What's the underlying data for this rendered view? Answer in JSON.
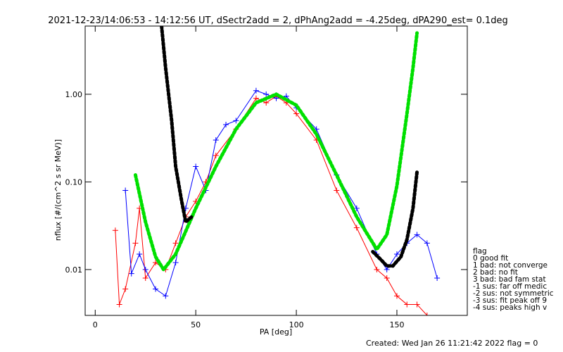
{
  "chart_data": {
    "type": "line",
    "title": "2021-12-23/14:06:53 - 14:12:56 UT, dSectr2add = 2, dPhAng2add = -4.25deg, dPA290_est=   0.1deg",
    "xlabel": "PA [deg]",
    "ylabel": "nflux [#/(cm^2 s sr MeV)]",
    "xlim": [
      -5,
      185
    ],
    "ylim": [
      0.003,
      6.0
    ],
    "yscale": "log",
    "x_ticks": [
      0,
      50,
      100,
      150
    ],
    "x_tick_labels": [
      "0",
      "50",
      "100",
      "150"
    ],
    "y_ticks": [
      0.01,
      0.1,
      1.0
    ],
    "y_tick_labels": [
      "0.01",
      "0.10",
      "1.00"
    ],
    "grid": false,
    "colors": {
      "red": "#ff0000",
      "blue": "#0000ff",
      "green": "#00e000",
      "black": "#000000"
    },
    "series": [
      {
        "color": "#00e000",
        "style": "dashed-thick",
        "x": [
          20,
          25,
          30,
          34,
          40,
          50,
          60,
          70,
          80,
          90,
          100,
          110,
          120,
          130,
          140,
          145,
          150,
          155,
          158,
          160
        ],
        "y": [
          0.12,
          0.035,
          0.014,
          0.01,
          0.015,
          0.05,
          0.15,
          0.4,
          0.8,
          1.0,
          0.75,
          0.35,
          0.12,
          0.04,
          0.017,
          0.025,
          0.09,
          0.6,
          2.0,
          5.0
        ]
      },
      {
        "color": "#000000",
        "style": "dashed-thick",
        "x": [
          33,
          35,
          38,
          40,
          43,
          45,
          48
        ],
        "y": [
          6.0,
          2.0,
          0.5,
          0.15,
          0.06,
          0.035,
          0.04
        ]
      },
      {
        "color": "#000000",
        "style": "dashed-thick",
        "x": [
          138,
          142,
          145,
          148,
          152,
          155,
          158,
          160
        ],
        "y": [
          0.016,
          0.013,
          0.011,
          0.011,
          0.014,
          0.022,
          0.05,
          0.13
        ]
      }
    ],
    "scatter_red": {
      "x": [
        10,
        12,
        15,
        20,
        22,
        25,
        30,
        35,
        40,
        45,
        50,
        55,
        60,
        70,
        80,
        85,
        90,
        95,
        100,
        110,
        120,
        130,
        140,
        145,
        150,
        155,
        160,
        165
      ],
      "y": [
        0.028,
        0.004,
        0.006,
        0.02,
        0.05,
        0.008,
        0.012,
        0.01,
        0.02,
        0.04,
        0.06,
        0.1,
        0.2,
        0.4,
        0.9,
        0.8,
        0.95,
        0.8,
        0.6,
        0.3,
        0.08,
        0.03,
        0.01,
        0.008,
        0.005,
        0.004,
        0.004,
        0.003
      ]
    },
    "scatter_blue": {
      "x": [
        15,
        18,
        22,
        25,
        30,
        35,
        40,
        45,
        50,
        55,
        60,
        65,
        70,
        80,
        85,
        90,
        95,
        100,
        110,
        120,
        130,
        140,
        145,
        150,
        155,
        160,
        165,
        170
      ],
      "y": [
        0.08,
        0.009,
        0.015,
        0.01,
        0.006,
        0.005,
        0.012,
        0.05,
        0.15,
        0.08,
        0.3,
        0.45,
        0.5,
        1.1,
        1.0,
        0.9,
        0.95,
        0.7,
        0.4,
        0.12,
        0.05,
        0.015,
        0.01,
        0.015,
        0.02,
        0.025,
        0.02,
        0.008
      ]
    },
    "legend": {
      "title": "flag",
      "items": [
        " 0 good fit",
        " 1 bad: not converge",
        " 2 bad: no fit",
        " 3 bad: bad fam stat",
        "-1 sus: far off medic",
        "-2 sus: not symmetric",
        "-3 sus: fit peak off 9",
        "-4 sus: peaks high v"
      ]
    },
    "footer": "Created: Wed Jan 26 11:21:42 2022    flag = 0"
  }
}
